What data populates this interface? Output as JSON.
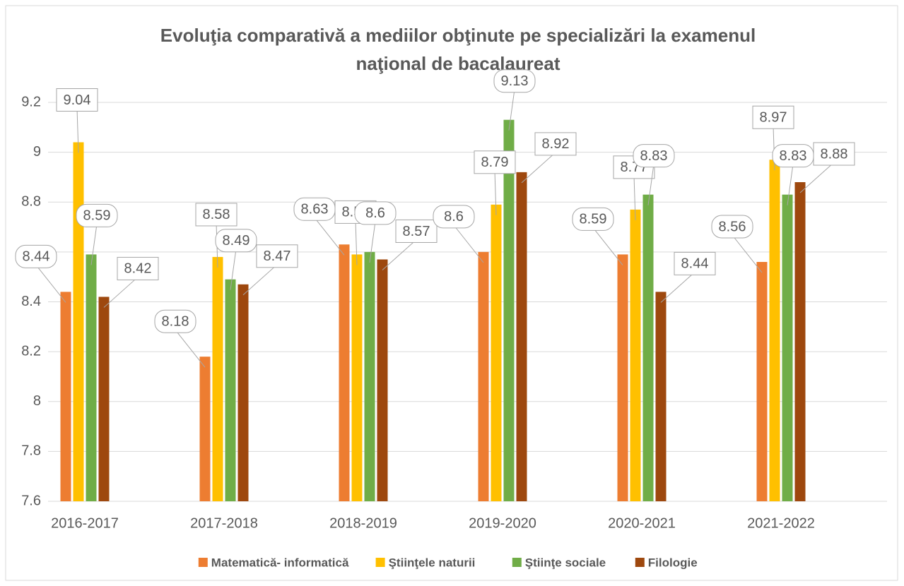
{
  "chart_data": {
    "type": "bar",
    "title": [
      "Evoluţia comparativă a mediilor obţinute pe specializări la examenul",
      "naţional de bacalaureat"
    ],
    "categories": [
      "2016-2017",
      "2017-2018",
      "2018-2019",
      "2019-2020",
      "2020-2021",
      "2021-2022"
    ],
    "series": [
      {
        "name": "Matematică- informatică",
        "color": "#ed7d31",
        "values": [
          8.44,
          8.18,
          8.63,
          8.6,
          8.59,
          8.56
        ]
      },
      {
        "name": "Ştiinţele naturii",
        "color": "#ffc000",
        "values": [
          9.04,
          8.58,
          8.59,
          8.79,
          8.77,
          8.97
        ]
      },
      {
        "name": "Ştiinţe sociale",
        "color": "#70ad47",
        "values": [
          8.59,
          8.49,
          8.6,
          9.13,
          8.83,
          8.83
        ]
      },
      {
        "name": "Filologie",
        "color": "#9e480e",
        "values": [
          8.42,
          8.47,
          8.57,
          8.92,
          8.44,
          8.88
        ]
      }
    ],
    "ylim": [
      7.6,
      9.2
    ],
    "yticks": [
      7.6,
      7.8,
      8,
      8.2,
      8.4,
      8.6,
      8.8,
      9,
      9.2
    ],
    "grid": true,
    "legend": "bottom"
  }
}
